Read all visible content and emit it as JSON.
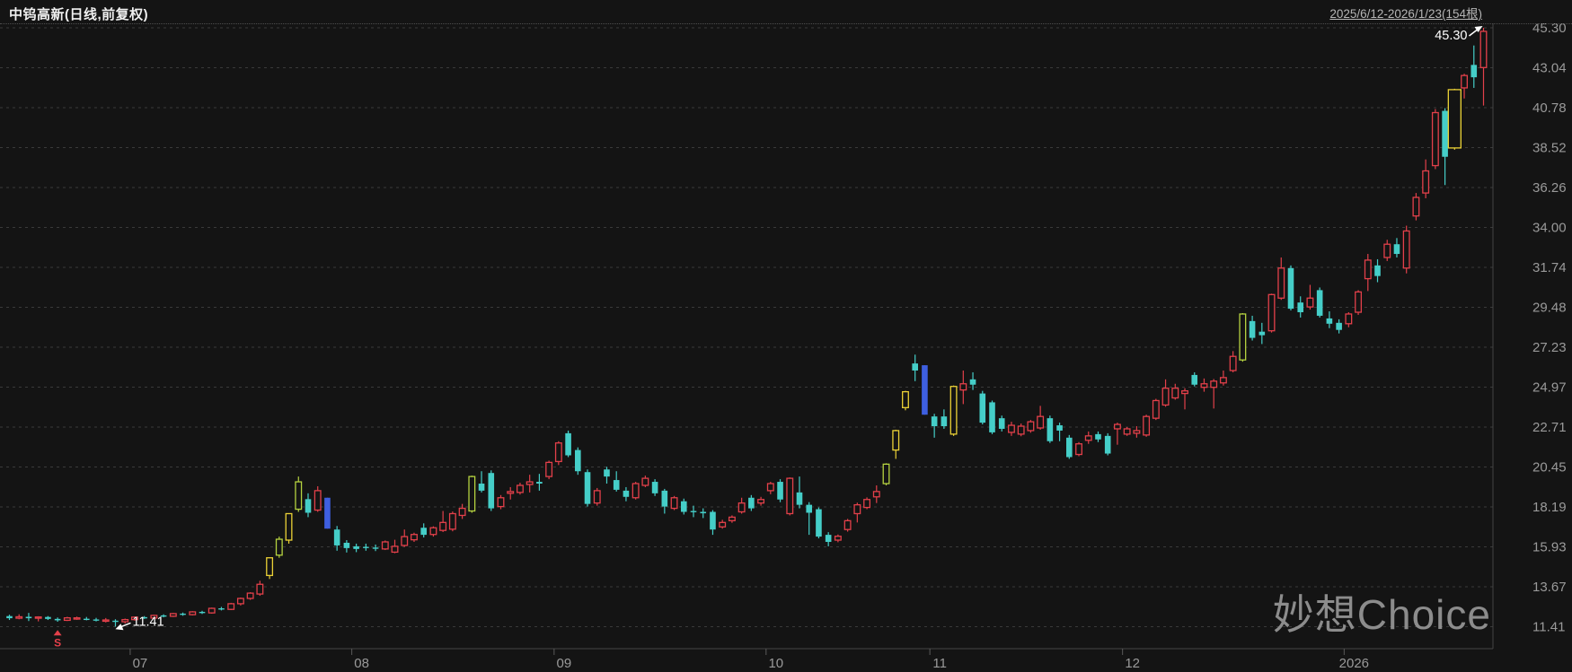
{
  "header": {
    "title": "中钨高新(日线,前复权)",
    "range_label": "2025/6/12-2026/1/23(154根)"
  },
  "watermark": "妙想Choice",
  "chart_data": {
    "type": "candlestick",
    "title": "中钨高新(日线,前复权)",
    "period_label": "2025/6/12-2026/1/23(154根)",
    "bars_count": 154,
    "ylim": [
      11.41,
      45.3
    ],
    "grid": "dashed-horizontal",
    "legend_position": "none",
    "y_ticks": [
      45.3,
      43.04,
      40.78,
      38.52,
      36.26,
      34.0,
      31.74,
      29.48,
      27.23,
      24.97,
      22.71,
      20.45,
      18.19,
      15.93,
      13.67,
      11.41
    ],
    "x_ticks": [
      {
        "label": "07",
        "index": 13
      },
      {
        "label": "08",
        "index": 36
      },
      {
        "label": "09",
        "index": 57
      },
      {
        "label": "10",
        "index": 79
      },
      {
        "label": "11",
        "index": 96
      },
      {
        "label": "12",
        "index": 116
      },
      {
        "label": "2026",
        "index": 139
      }
    ],
    "annotations": {
      "high": {
        "text": "45.30",
        "index": 153,
        "price": 45.3
      },
      "low": {
        "text": "11.41",
        "index": 11,
        "price": 11.41
      }
    },
    "event_marker": {
      "text": "S",
      "index": 5,
      "type": "dividend-marker"
    },
    "colors": {
      "up": "#e3404a",
      "down": "#45cec8",
      "highlight_yellow": "#ecd236",
      "highlight_lime": "#b6d340",
      "special_blue": "#3e5fe0",
      "grid": "#3a3a3a",
      "axis_line": "#454545",
      "axis_text": "#9a9a9a",
      "annotation": "#ffffff",
      "background": "#141414"
    },
    "candles": {
      "format": [
        "open",
        "high",
        "low",
        "close",
        "color_code"
      ],
      "color_codes": {
        "r": "up-hollow-red",
        "g": "down-filled-cyan",
        "y": "limit-up-yellow",
        "l": "limit-up-lime",
        "b": "special-blue",
        "W": "wide-body-flag"
      },
      "data": [
        [
          12.0,
          12.08,
          11.78,
          11.88,
          "g"
        ],
        [
          11.88,
          12.1,
          11.82,
          11.96,
          "r"
        ],
        [
          11.96,
          12.18,
          11.72,
          11.88,
          "g"
        ],
        [
          11.88,
          11.99,
          11.7,
          11.95,
          "r"
        ],
        [
          11.95,
          12.0,
          11.78,
          11.84,
          "g"
        ],
        [
          11.84,
          11.92,
          11.68,
          11.76,
          "g"
        ],
        [
          11.76,
          11.96,
          11.72,
          11.9,
          "r"
        ],
        [
          11.9,
          11.97,
          11.79,
          11.85,
          "r"
        ],
        [
          11.85,
          11.95,
          11.76,
          11.81,
          "g"
        ],
        [
          11.81,
          11.9,
          11.7,
          11.78,
          "g"
        ],
        [
          11.78,
          11.89,
          11.64,
          11.74,
          "r"
        ],
        [
          11.74,
          11.82,
          11.41,
          11.68,
          "g"
        ],
        [
          11.68,
          11.86,
          11.58,
          11.8,
          "r"
        ],
        [
          11.8,
          11.98,
          11.74,
          11.94,
          "r"
        ],
        [
          11.94,
          12.0,
          11.84,
          11.89,
          "g"
        ],
        [
          11.89,
          12.08,
          11.85,
          12.04,
          "r"
        ],
        [
          12.04,
          12.1,
          11.93,
          11.99,
          "g"
        ],
        [
          11.99,
          12.18,
          11.95,
          12.14,
          "r"
        ],
        [
          12.14,
          12.2,
          12.02,
          12.08,
          "g"
        ],
        [
          12.08,
          12.28,
          12.04,
          12.24,
          "r"
        ],
        [
          12.24,
          12.3,
          12.12,
          12.18,
          "g"
        ],
        [
          12.18,
          12.48,
          12.14,
          12.44,
          "r"
        ],
        [
          12.44,
          12.52,
          12.32,
          12.38,
          "g"
        ],
        [
          12.38,
          12.75,
          12.34,
          12.7,
          "r"
        ],
        [
          12.7,
          13.05,
          12.6,
          13.0,
          "r"
        ],
        [
          13.0,
          13.35,
          12.92,
          13.3,
          "r"
        ],
        [
          13.25,
          14.0,
          13.15,
          13.8,
          "r"
        ],
        [
          14.3,
          15.3,
          14.1,
          15.3,
          "y"
        ],
        [
          15.45,
          16.5,
          15.3,
          16.35,
          "l"
        ],
        [
          16.3,
          17.8,
          16.1,
          17.8,
          "y"
        ],
        [
          18.05,
          19.9,
          17.9,
          19.6,
          "l"
        ],
        [
          18.62,
          18.95,
          17.6,
          17.85,
          "g"
        ],
        [
          18.0,
          19.35,
          17.9,
          19.1,
          "r"
        ],
        [
          18.7,
          18.7,
          16.95,
          16.95,
          "b"
        ],
        [
          16.9,
          17.1,
          15.7,
          16.0,
          "g"
        ],
        [
          16.15,
          16.3,
          15.6,
          15.85,
          "g"
        ],
        [
          15.95,
          16.1,
          15.62,
          15.8,
          "g"
        ],
        [
          15.88,
          16.1,
          15.7,
          15.92,
          "g"
        ],
        [
          15.85,
          16.05,
          15.68,
          15.88,
          "g"
        ],
        [
          15.8,
          16.28,
          15.74,
          16.2,
          "r"
        ],
        [
          15.62,
          16.32,
          15.56,
          15.95,
          "r"
        ],
        [
          16.0,
          16.9,
          15.92,
          16.5,
          "r"
        ],
        [
          16.32,
          16.72,
          16.2,
          16.62,
          "r"
        ],
        [
          17.0,
          17.25,
          16.45,
          16.6,
          "g"
        ],
        [
          16.62,
          17.08,
          16.5,
          17.0,
          "r"
        ],
        [
          16.85,
          17.95,
          16.76,
          17.3,
          "r"
        ],
        [
          16.92,
          17.92,
          16.8,
          17.8,
          "r"
        ],
        [
          17.7,
          18.35,
          17.5,
          18.1,
          "r"
        ],
        [
          17.95,
          19.95,
          17.85,
          19.9,
          "l"
        ],
        [
          19.5,
          20.2,
          19.0,
          19.1,
          "g"
        ],
        [
          20.1,
          20.25,
          17.95,
          18.1,
          "g"
        ],
        [
          18.2,
          18.85,
          18.05,
          18.7,
          "r"
        ],
        [
          18.95,
          19.3,
          18.6,
          19.05,
          "r"
        ],
        [
          19.0,
          19.55,
          18.88,
          19.4,
          "r"
        ],
        [
          19.45,
          20.0,
          19.0,
          19.6,
          "r"
        ],
        [
          19.6,
          20.05,
          19.1,
          19.5,
          "g"
        ],
        [
          19.9,
          20.8,
          19.75,
          20.7,
          "r"
        ],
        [
          20.75,
          21.9,
          20.55,
          21.8,
          "r"
        ],
        [
          22.35,
          22.5,
          21.0,
          21.1,
          "g"
        ],
        [
          21.4,
          21.55,
          20.0,
          20.2,
          "g"
        ],
        [
          20.15,
          20.3,
          18.2,
          18.35,
          "g"
        ],
        [
          18.4,
          19.25,
          18.25,
          19.1,
          "r"
        ],
        [
          20.3,
          20.45,
          19.5,
          19.9,
          "g"
        ],
        [
          19.7,
          20.2,
          19.05,
          19.15,
          "g"
        ],
        [
          19.1,
          19.3,
          18.5,
          18.75,
          "g"
        ],
        [
          18.7,
          19.6,
          18.6,
          19.5,
          "r"
        ],
        [
          19.4,
          19.95,
          19.3,
          19.8,
          "r"
        ],
        [
          19.6,
          19.75,
          18.8,
          18.95,
          "g"
        ],
        [
          19.1,
          19.2,
          17.8,
          18.2,
          "g"
        ],
        [
          18.1,
          18.8,
          18.0,
          18.7,
          "r"
        ],
        [
          18.5,
          18.65,
          17.75,
          17.9,
          "g"
        ],
        [
          17.95,
          18.25,
          17.6,
          17.88,
          "g"
        ],
        [
          17.9,
          18.1,
          17.55,
          17.82,
          "g"
        ],
        [
          17.9,
          18.0,
          16.6,
          16.9,
          "g"
        ],
        [
          17.05,
          17.45,
          16.95,
          17.3,
          "r"
        ],
        [
          17.4,
          17.7,
          17.28,
          17.6,
          "r"
        ],
        [
          17.9,
          18.7,
          17.8,
          18.4,
          "r"
        ],
        [
          18.7,
          18.85,
          17.95,
          18.1,
          "g"
        ],
        [
          18.4,
          18.75,
          18.25,
          18.6,
          "r"
        ],
        [
          19.1,
          19.6,
          18.9,
          19.5,
          "r"
        ],
        [
          19.6,
          19.75,
          18.45,
          18.6,
          "g"
        ],
        [
          17.8,
          19.85,
          17.7,
          19.8,
          "r"
        ],
        [
          19.0,
          19.9,
          18.1,
          18.3,
          "g"
        ],
        [
          18.3,
          18.45,
          16.6,
          17.85,
          "g"
        ],
        [
          18.05,
          18.15,
          16.4,
          16.5,
          "g"
        ],
        [
          16.6,
          16.75,
          15.95,
          16.2,
          "g"
        ],
        [
          16.3,
          16.62,
          16.18,
          16.52,
          "r"
        ],
        [
          16.9,
          17.5,
          16.78,
          17.4,
          "r"
        ],
        [
          17.8,
          18.42,
          17.3,
          18.3,
          "r"
        ],
        [
          18.15,
          18.72,
          18.05,
          18.6,
          "r"
        ],
        [
          18.75,
          19.4,
          18.4,
          19.05,
          "r"
        ],
        [
          19.5,
          20.65,
          19.4,
          20.6,
          "l"
        ],
        [
          21.4,
          22.55,
          20.9,
          22.5,
          "y"
        ],
        [
          23.8,
          24.75,
          23.65,
          24.7,
          "y"
        ],
        [
          26.3,
          26.8,
          25.3,
          25.9,
          "g"
        ],
        [
          26.2,
          26.2,
          23.4,
          23.4,
          "b"
        ],
        [
          23.3,
          23.45,
          22.1,
          22.75,
          "g"
        ],
        [
          23.3,
          23.7,
          22.6,
          22.75,
          "g"
        ],
        [
          22.3,
          25.05,
          22.2,
          25.0,
          "y"
        ],
        [
          24.8,
          25.9,
          24.0,
          25.15,
          "r"
        ],
        [
          25.4,
          25.8,
          24.8,
          25.1,
          "g"
        ],
        [
          24.6,
          24.75,
          22.85,
          22.95,
          "g"
        ],
        [
          24.1,
          24.2,
          22.3,
          22.4,
          "g"
        ],
        [
          23.2,
          23.35,
          22.45,
          22.6,
          "g"
        ],
        [
          22.4,
          23.0,
          22.2,
          22.8,
          "r"
        ],
        [
          22.3,
          22.9,
          22.18,
          22.75,
          "r"
        ],
        [
          22.5,
          23.1,
          22.38,
          23.0,
          "r"
        ],
        [
          22.65,
          23.9,
          22.55,
          23.3,
          "r"
        ],
        [
          23.2,
          23.35,
          21.8,
          21.9,
          "g"
        ],
        [
          22.8,
          22.95,
          21.9,
          22.5,
          "g"
        ],
        [
          22.1,
          22.25,
          20.9,
          21.0,
          "g"
        ],
        [
          21.15,
          21.85,
          21.05,
          21.75,
          "r"
        ],
        [
          21.95,
          22.45,
          21.75,
          22.2,
          "r"
        ],
        [
          22.3,
          22.45,
          21.85,
          22.0,
          "g"
        ],
        [
          22.2,
          22.35,
          21.1,
          21.2,
          "g"
        ],
        [
          22.6,
          22.95,
          21.7,
          22.85,
          "r"
        ],
        [
          22.3,
          22.7,
          22.2,
          22.6,
          "r"
        ],
        [
          22.35,
          22.75,
          22.1,
          22.5,
          "r"
        ],
        [
          22.25,
          23.4,
          22.15,
          23.3,
          "r"
        ],
        [
          23.2,
          24.3,
          23.1,
          24.2,
          "r"
        ],
        [
          23.95,
          25.4,
          23.85,
          24.9,
          "r"
        ],
        [
          24.35,
          25.15,
          24.25,
          24.9,
          "r"
        ],
        [
          24.6,
          24.9,
          23.7,
          24.75,
          "r"
        ],
        [
          25.65,
          25.8,
          25.0,
          25.1,
          "g"
        ],
        [
          24.95,
          25.45,
          24.7,
          25.15,
          "r"
        ],
        [
          24.95,
          25.42,
          23.75,
          25.3,
          "r"
        ],
        [
          25.2,
          25.9,
          25.05,
          25.5,
          "r"
        ],
        [
          25.9,
          27.0,
          25.8,
          26.7,
          "r"
        ],
        [
          26.5,
          29.15,
          26.4,
          29.1,
          "l"
        ],
        [
          28.7,
          29.0,
          27.6,
          27.75,
          "g"
        ],
        [
          28.1,
          28.6,
          27.4,
          27.9,
          "g"
        ],
        [
          28.15,
          30.25,
          28.05,
          30.2,
          "r"
        ],
        [
          30.0,
          32.3,
          29.9,
          31.7,
          "r"
        ],
        [
          31.7,
          31.85,
          29.3,
          29.4,
          "g"
        ],
        [
          29.75,
          30.1,
          28.9,
          29.2,
          "g"
        ],
        [
          29.5,
          30.75,
          29.35,
          30.0,
          "r"
        ],
        [
          30.45,
          30.6,
          28.9,
          29.0,
          "g"
        ],
        [
          28.85,
          29.25,
          28.3,
          28.55,
          "g"
        ],
        [
          28.6,
          28.8,
          28.0,
          28.2,
          "g"
        ],
        [
          28.55,
          29.2,
          28.35,
          29.1,
          "r"
        ],
        [
          29.2,
          30.45,
          29.05,
          30.35,
          "r"
        ],
        [
          31.1,
          32.5,
          30.4,
          32.15,
          "r"
        ],
        [
          31.85,
          32.2,
          30.9,
          31.25,
          "g"
        ],
        [
          32.3,
          33.3,
          32.1,
          33.05,
          "r"
        ],
        [
          33.05,
          33.4,
          32.3,
          32.5,
          "g"
        ],
        [
          31.7,
          34.1,
          31.4,
          33.8,
          "r"
        ],
        [
          34.65,
          35.95,
          34.4,
          35.7,
          "r"
        ],
        [
          35.95,
          37.85,
          35.65,
          37.2,
          "r"
        ],
        [
          37.5,
          40.7,
          37.3,
          40.5,
          "r"
        ],
        [
          40.6,
          40.75,
          36.4,
          38.0,
          "g"
        ],
        [
          38.5,
          41.85,
          38.4,
          41.8,
          "y",
          "W"
        ],
        [
          41.9,
          42.7,
          41.3,
          42.6,
          "r"
        ],
        [
          43.2,
          44.3,
          41.9,
          42.5,
          "g"
        ],
        [
          43.05,
          45.3,
          40.9,
          45.1,
          "r"
        ]
      ]
    }
  }
}
